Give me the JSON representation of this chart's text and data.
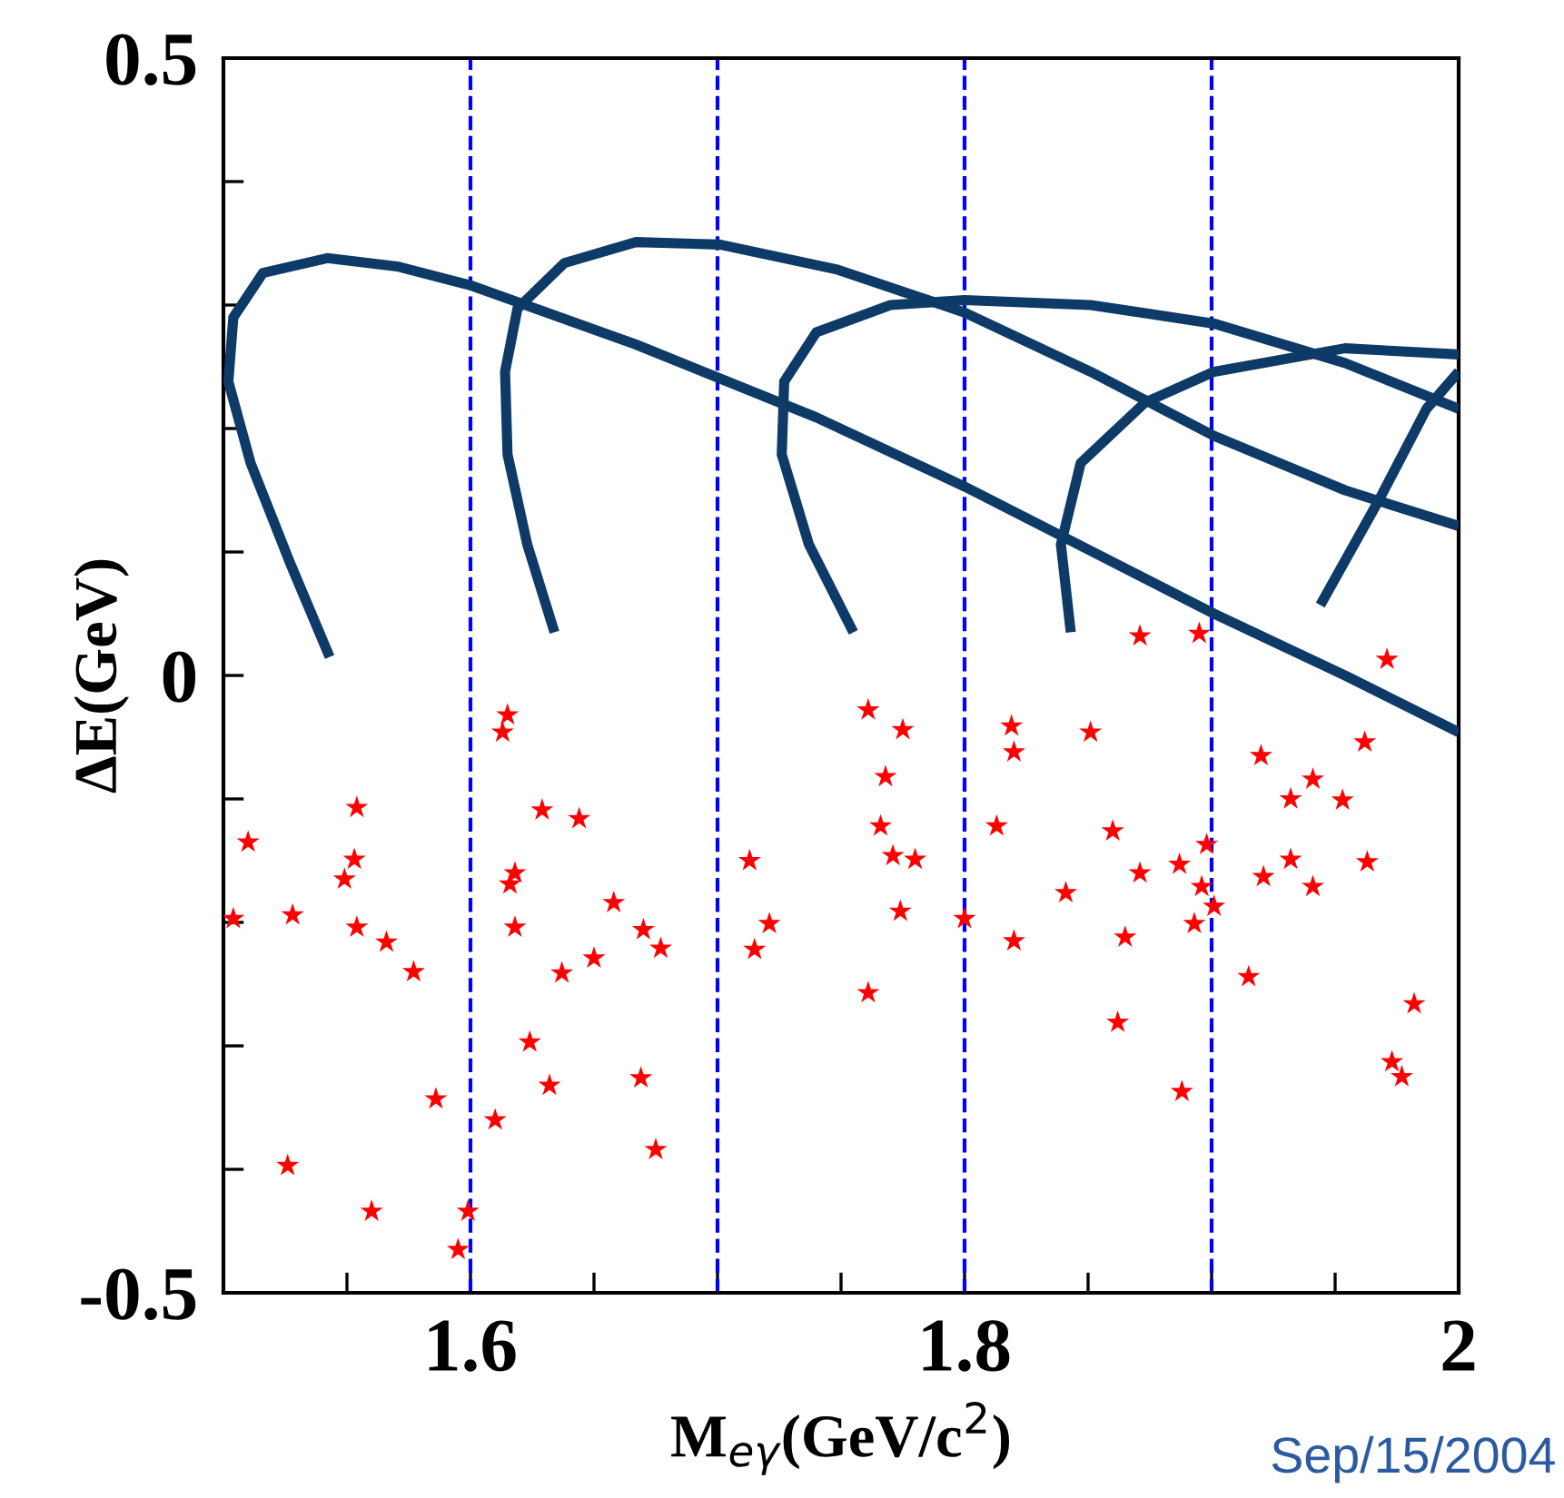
{
  "chart_data": {
    "type": "scatter",
    "xlabel": "M$_{eγ}$(GeV/c$^{2}$)",
    "ylabel": "ΔE(GeV)",
    "xlim": [
      1.5,
      2.0
    ],
    "ylim": [
      -0.5,
      0.5
    ],
    "xticks": [
      {
        "value": 1.5,
        "label": null
      },
      {
        "value": 1.55,
        "label": null
      },
      1.6,
      {
        "value": 1.65,
        "label": null
      },
      {
        "value": 1.7,
        "label": null
      },
      {
        "value": 1.75,
        "label": null
      },
      1.8,
      {
        "value": 1.85,
        "label": null
      },
      {
        "value": 1.9,
        "label": null
      },
      {
        "value": 1.95,
        "label": null
      },
      2
    ],
    "yticks": [
      -0.5,
      {
        "value": -0.4,
        "label": null
      },
      {
        "value": -0.3,
        "label": null
      },
      {
        "value": -0.2,
        "label": null
      },
      {
        "value": -0.1,
        "label": null
      },
      0,
      {
        "value": 0.1,
        "label": null
      },
      {
        "value": 0.2,
        "label": null
      },
      {
        "value": 0.3,
        "label": null
      },
      {
        "value": 0.4,
        "label": null
      },
      0.5
    ],
    "grid": false,
    "legend": false,
    "ref_lines": [
      {
        "axis": "x",
        "value": 1.6,
        "color": "#0000ff",
        "line_style": "dashed"
      },
      {
        "axis": "x",
        "value": 1.7,
        "color": "#0000ff",
        "line_style": "dashed"
      },
      {
        "axis": "x",
        "value": 1.8,
        "color": "#0000ff",
        "line_style": "dashed"
      },
      {
        "axis": "x",
        "value": 1.9,
        "color": "#0000ff",
        "line_style": "dashed"
      }
    ],
    "annotations": [
      "Sep/15/2004"
    ],
    "series": [
      {
        "marker": "star",
        "color": "#ff0000",
        "x": [
          1.51,
          1.504,
          1.528,
          1.554,
          1.553,
          1.549,
          1.554,
          1.566,
          1.577,
          1.526,
          1.56,
          1.586,
          1.595,
          1.599,
          1.615,
          1.613,
          1.629,
          1.644,
          1.618,
          1.616,
          1.658,
          1.618,
          1.67,
          1.677,
          1.637,
          1.65,
          1.624,
          1.632,
          1.669,
          1.61,
          1.675,
          1.761,
          1.775,
          1.768,
          1.766,
          1.771,
          1.78,
          1.774,
          1.761,
          1.713,
          1.721,
          1.715,
          1.819,
          1.82,
          1.851,
          1.813,
          1.86,
          1.8,
          1.82,
          1.871,
          1.841,
          1.865,
          1.862,
          1.871,
          1.895,
          1.971,
          1.962,
          1.92,
          1.941,
          1.932,
          1.953,
          1.898,
          1.887,
          1.896,
          1.901,
          1.921,
          1.932,
          1.941,
          1.963,
          1.893,
          1.915,
          1.982,
          1.973,
          1.977,
          1.888
        ],
        "values": [
          -0.135,
          -0.197,
          -0.194,
          -0.107,
          -0.149,
          -0.165,
          -0.204,
          -0.216,
          -0.24,
          -0.397,
          -0.434,
          -0.343,
          -0.465,
          -0.434,
          -0.032,
          -0.046,
          -0.109,
          -0.116,
          -0.16,
          -0.169,
          -0.184,
          -0.204,
          -0.206,
          -0.221,
          -0.241,
          -0.229,
          -0.297,
          -0.332,
          -0.326,
          -0.36,
          -0.384,
          -0.028,
          -0.044,
          -0.082,
          -0.122,
          -0.146,
          -0.149,
          -0.191,
          -0.257,
          -0.15,
          -0.201,
          -0.222,
          -0.041,
          -0.062,
          -0.046,
          -0.122,
          -0.126,
          -0.197,
          -0.215,
          -0.16,
          -0.176,
          -0.212,
          -0.281,
          0.032,
          0.034,
          0.013,
          -0.054,
          -0.065,
          -0.084,
          -0.1,
          -0.101,
          -0.137,
          -0.153,
          -0.171,
          -0.187,
          -0.163,
          -0.149,
          -0.171,
          -0.151,
          -0.201,
          -0.244,
          -0.266,
          -0.313,
          -0.325,
          -0.337
        ]
      },
      {
        "type": "line",
        "marker": "none",
        "line_style": "solid",
        "color": "#0d3a66",
        "x": [
          1.543,
          1.527,
          1.511,
          1.502,
          1.504,
          1.516,
          1.542,
          1.571,
          1.6,
          1.667,
          1.74,
          1.8,
          1.851,
          1.901,
          1.954,
          2.0
        ],
        "values": [
          0.015,
          0.091,
          0.172,
          0.238,
          0.29,
          0.326,
          0.338,
          0.331,
          0.316,
          0.268,
          0.209,
          0.153,
          0.101,
          0.05,
          0.0,
          -0.046
        ]
      },
      {
        "type": "line",
        "marker": "none",
        "line_style": "solid",
        "color": "#0d3a66",
        "x": [
          1.634,
          1.623,
          1.615,
          1.614,
          1.619,
          1.638,
          1.667,
          1.701,
          1.748,
          1.8,
          1.851,
          1.901,
          1.954,
          2.0
        ],
        "values": [
          0.035,
          0.106,
          0.179,
          0.246,
          0.297,
          0.334,
          0.351,
          0.349,
          0.329,
          0.294,
          0.246,
          0.194,
          0.15,
          0.121
        ]
      },
      {
        "type": "line",
        "marker": "none",
        "line_style": "solid",
        "color": "#0d3a66",
        "x": [
          1.755,
          1.737,
          1.726,
          1.727,
          1.74,
          1.77,
          1.8,
          1.851,
          1.901,
          1.954,
          2.0
        ],
        "values": [
          0.035,
          0.106,
          0.179,
          0.238,
          0.278,
          0.3,
          0.304,
          0.3,
          0.285,
          0.253,
          0.216
        ]
      },
      {
        "type": "line",
        "marker": "none",
        "line_style": "solid",
        "color": "#0d3a66",
        "x": [
          1.843,
          1.839,
          1.847,
          1.873,
          1.901,
          1.954,
          2.0
        ],
        "values": [
          0.035,
          0.106,
          0.172,
          0.221,
          0.246,
          0.265,
          0.26
        ]
      },
      {
        "type": "line",
        "marker": "none",
        "line_style": "solid",
        "color": "#0d3a66",
        "x": [
          1.944,
          1.968,
          1.987,
          2.0
        ],
        "values": [
          0.057,
          0.143,
          0.216,
          0.246
        ]
      }
    ]
  }
}
